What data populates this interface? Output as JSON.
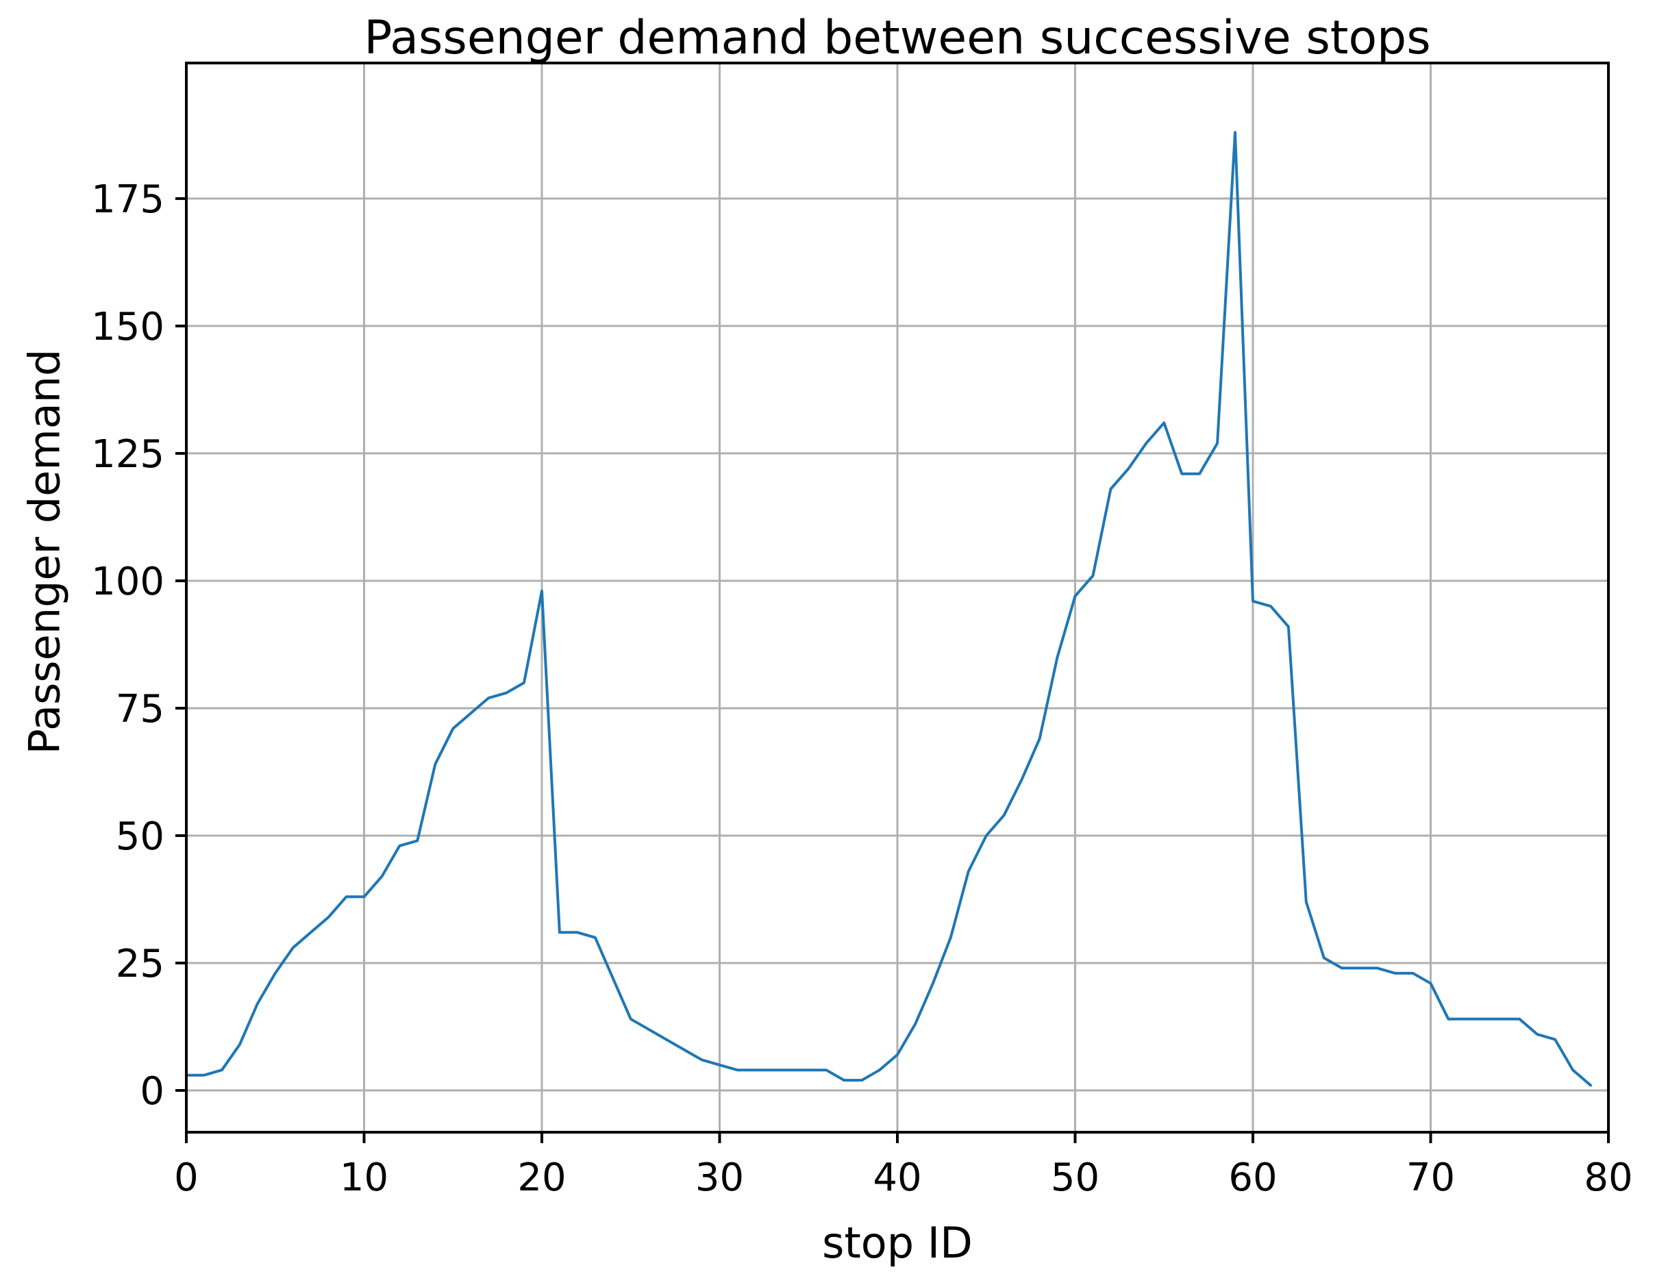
{
  "chart_data": {
    "type": "line",
    "title": "Passenger demand between successive stops",
    "xlabel": "stop ID",
    "ylabel": "Passenger demand",
    "x": [
      0,
      1,
      2,
      3,
      4,
      5,
      6,
      7,
      8,
      9,
      10,
      11,
      12,
      13,
      14,
      15,
      16,
      17,
      18,
      19,
      20,
      21,
      22,
      23,
      24,
      25,
      26,
      27,
      28,
      29,
      30,
      31,
      32,
      33,
      34,
      35,
      36,
      37,
      38,
      39,
      40,
      41,
      42,
      43,
      44,
      45,
      46,
      47,
      48,
      49,
      50,
      51,
      52,
      53,
      54,
      55,
      56,
      57,
      58,
      59,
      60,
      61,
      62,
      63,
      64,
      65,
      66,
      67,
      68,
      69,
      70,
      71,
      72,
      73,
      74,
      75,
      76,
      77,
      78,
      79
    ],
    "values": [
      3,
      3,
      4,
      9,
      17,
      23,
      28,
      31,
      34,
      38,
      38,
      42,
      48,
      49,
      64,
      71,
      74,
      77,
      78,
      80,
      98,
      31,
      31,
      30,
      22,
      14,
      12,
      10,
      8,
      6,
      5,
      4,
      4,
      4,
      4,
      4,
      4,
      2,
      2,
      4,
      7,
      13,
      21,
      30,
      43,
      50,
      54,
      61,
      69,
      85,
      97,
      101,
      118,
      122,
      127,
      131,
      121,
      121,
      127,
      188,
      96,
      95,
      91,
      37,
      26,
      24,
      24,
      24,
      23,
      23,
      21,
      14,
      14,
      14,
      14,
      14,
      11,
      10,
      4,
      1
    ],
    "xlim": [
      0,
      80
    ],
    "ylim": [
      -8.2,
      201.6
    ],
    "xticks": [
      0,
      10,
      20,
      30,
      40,
      50,
      60,
      70,
      80
    ],
    "yticks": [
      0,
      25,
      50,
      75,
      100,
      125,
      150,
      175
    ],
    "grid": true,
    "legend": "none",
    "line_color": "#1f77b4",
    "grid_color": "#b0b0b0",
    "spine_color": "#000000"
  }
}
